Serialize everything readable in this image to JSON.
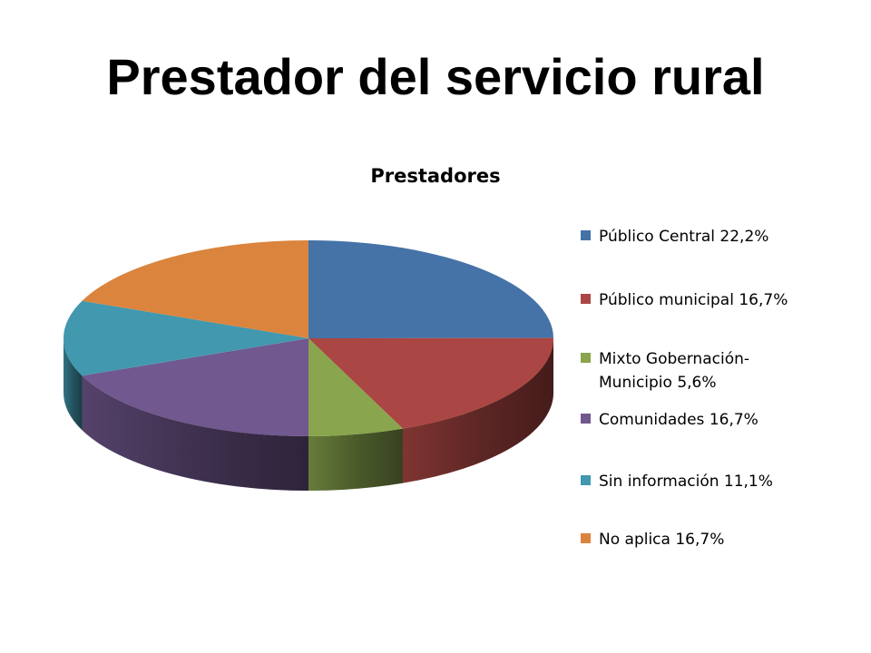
{
  "slide": {
    "title": "Prestador del servicio rural"
  },
  "chart_data": {
    "type": "pie",
    "title": "Prestadores",
    "legend_position": "right",
    "three_d": true,
    "slices": [
      {
        "label": "Público Central 22,2%",
        "value": 22.2,
        "color": "#4572A7"
      },
      {
        "label": "Público municipal 16,7%",
        "value": 16.7,
        "color": "#AA4643"
      },
      {
        "label": "Mixto Gobernación-Municipio 5,6%",
        "value": 5.6,
        "color": "#89A54E"
      },
      {
        "label": "Comunidades 16,7%",
        "value": 16.7,
        "color": "#71588F"
      },
      {
        "label": "Sin información 11,1%",
        "value": 11.1,
        "color": "#4198AF"
      },
      {
        "label": "No aplica 16,7%",
        "value": 16.7,
        "color": "#DB843D"
      }
    ]
  }
}
